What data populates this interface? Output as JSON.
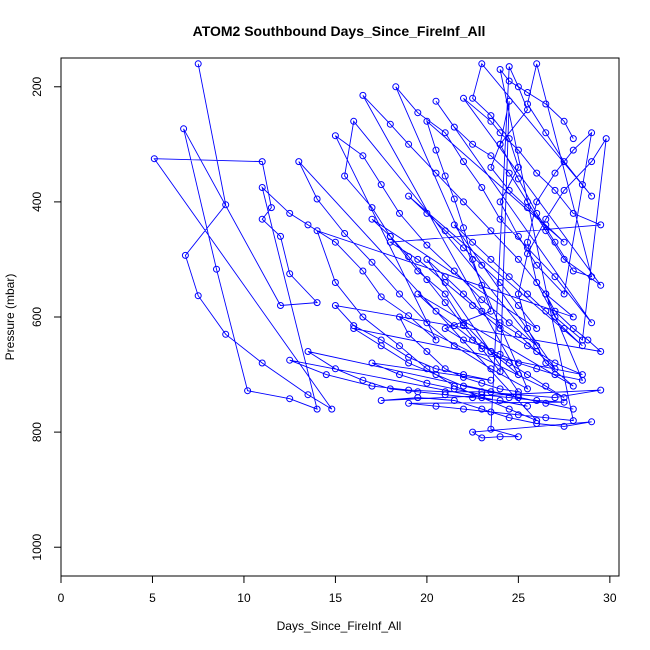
{
  "chart_data": {
    "type": "scatter",
    "title": "ATOM2 Southbound Days_Since_FireInf_All",
    "xlabel": "Days_Since_FireInf_All",
    "ylabel": "Pressure (mbar)",
    "xlim": [
      0,
      30.5
    ],
    "ylim": [
      1050,
      150
    ],
    "y_reversed": true,
    "xticks": [
      "0",
      "5",
      "10",
      "15",
      "20",
      "25",
      "30"
    ],
    "yticks": [
      "200",
      "400",
      "600",
      "800",
      "1000"
    ],
    "grid": false,
    "legend": "none",
    "series": [
      {
        "marker": "open-circle",
        "connected": true,
        "points": [
          [
            7.5,
            160
          ],
          [
            9.0,
            405
          ],
          [
            6.8,
            493
          ],
          [
            7.5,
            563
          ],
          [
            9.0,
            630
          ],
          [
            11.0,
            680
          ],
          [
            13.5,
            735
          ],
          [
            14.8,
            760
          ],
          [
            5.1,
            325
          ],
          [
            11.0,
            330
          ],
          [
            11.5,
            410
          ],
          [
            11.0,
            430
          ],
          [
            12.0,
            460
          ],
          [
            12.5,
            525
          ],
          [
            14.0,
            575
          ],
          [
            12.0,
            580
          ],
          [
            6.7,
            273
          ],
          [
            8.5,
            517
          ],
          [
            10.2,
            728
          ],
          [
            12.5,
            742
          ],
          [
            14.0,
            760
          ],
          [
            11.0,
            375
          ],
          [
            12.5,
            420
          ],
          [
            13.5,
            440
          ],
          [
            15.0,
            470
          ],
          [
            16.5,
            520
          ],
          [
            17.5,
            565
          ],
          [
            19.0,
            598
          ],
          [
            20.5,
            640
          ],
          [
            15.0,
            285
          ],
          [
            16.5,
            320
          ],
          [
            17.5,
            370
          ],
          [
            18.5,
            420
          ],
          [
            20.0,
            475
          ],
          [
            21.5,
            520
          ],
          [
            23.0,
            570
          ],
          [
            24.5,
            610
          ],
          [
            26.0,
            650
          ],
          [
            16.0,
            260
          ],
          [
            15.5,
            355
          ],
          [
            17.0,
            410
          ],
          [
            18.0,
            460
          ],
          [
            19.5,
            520
          ],
          [
            21.0,
            560
          ],
          [
            22.0,
            610
          ],
          [
            23.5,
            660
          ],
          [
            25.0,
            700
          ],
          [
            16.5,
            215
          ],
          [
            18.0,
            265
          ],
          [
            19.0,
            300
          ],
          [
            20.5,
            350
          ],
          [
            22.0,
            400
          ],
          [
            23.5,
            450
          ],
          [
            25.0,
            500
          ],
          [
            26.5,
            560
          ],
          [
            28.0,
            600
          ],
          [
            14.0,
            450
          ],
          [
            15.0,
            540
          ],
          [
            16.5,
            600
          ],
          [
            18.5,
            650
          ],
          [
            20.0,
            690
          ],
          [
            21.5,
            720
          ],
          [
            23.0,
            740
          ],
          [
            24.5,
            760
          ],
          [
            26.0,
            780
          ],
          [
            13.0,
            330
          ],
          [
            14.0,
            395
          ],
          [
            15.5,
            455
          ],
          [
            17.0,
            505
          ],
          [
            18.5,
            560
          ],
          [
            20.0,
            610
          ],
          [
            21.5,
            650
          ],
          [
            23.5,
            690
          ],
          [
            25.5,
            725
          ],
          [
            18.3,
            200
          ],
          [
            19.5,
            245
          ],
          [
            21.0,
            280
          ],
          [
            22.0,
            330
          ],
          [
            23.0,
            375
          ],
          [
            24.0,
            430
          ],
          [
            25.5,
            480
          ],
          [
            27.0,
            530
          ],
          [
            29.0,
            610
          ],
          [
            20.5,
            225
          ],
          [
            21.5,
            270
          ],
          [
            22.5,
            300
          ],
          [
            23.5,
            320
          ],
          [
            24.5,
            350
          ],
          [
            25.5,
            400
          ],
          [
            26.5,
            450
          ],
          [
            27.5,
            500
          ],
          [
            29.5,
            545
          ],
          [
            22.0,
            220
          ],
          [
            23.5,
            260
          ],
          [
            24.0,
            280
          ],
          [
            25.0,
            310
          ],
          [
            26.0,
            350
          ],
          [
            27.0,
            380
          ],
          [
            28.0,
            420
          ],
          [
            29.5,
            440
          ],
          [
            18.0,
            470
          ],
          [
            19.5,
            500
          ],
          [
            21.0,
            540
          ],
          [
            22.5,
            580
          ],
          [
            24.0,
            620
          ],
          [
            25.5,
            650
          ],
          [
            27.0,
            680
          ],
          [
            28.5,
            700
          ],
          [
            16.0,
            620
          ],
          [
            17.5,
            650
          ],
          [
            19.0,
            680
          ],
          [
            20.5,
            700
          ],
          [
            22.0,
            720
          ],
          [
            23.5,
            730
          ],
          [
            25.0,
            740
          ],
          [
            26.5,
            750
          ],
          [
            28.0,
            760
          ],
          [
            13.5,
            660
          ],
          [
            15.0,
            690
          ],
          [
            16.5,
            710
          ],
          [
            18.0,
            725
          ],
          [
            19.5,
            730
          ],
          [
            21.0,
            735
          ],
          [
            22.5,
            740
          ],
          [
            24.0,
            745
          ],
          [
            25.5,
            755
          ],
          [
            12.5,
            675
          ],
          [
            14.5,
            700
          ],
          [
            17.0,
            720
          ],
          [
            19.0,
            727
          ],
          [
            21.0,
            730
          ],
          [
            23.0,
            730
          ],
          [
            25.0,
            735
          ],
          [
            27.0,
            740
          ],
          [
            29.5,
            727
          ],
          [
            17.5,
            745
          ],
          [
            19.5,
            740
          ],
          [
            21.5,
            745
          ],
          [
            23.0,
            760
          ],
          [
            24.5,
            775
          ],
          [
            26.0,
            785
          ],
          [
            27.5,
            790
          ],
          [
            29.0,
            782
          ],
          [
            22.5,
            800
          ],
          [
            23.0,
            810
          ],
          [
            24.0,
            808
          ],
          [
            25.0,
            808
          ],
          [
            23.5,
            795
          ],
          [
            24.5,
            165
          ],
          [
            25.0,
            200
          ],
          [
            25.5,
            240
          ],
          [
            24.0,
            300
          ],
          [
            25.0,
            360
          ],
          [
            26.0,
            420
          ],
          [
            27.0,
            470
          ],
          [
            28.0,
            520
          ],
          [
            29.0,
            530
          ],
          [
            26.0,
            160
          ],
          [
            25.5,
            230
          ],
          [
            26.5,
            280
          ],
          [
            27.5,
            330
          ],
          [
            28.5,
            370
          ],
          [
            29.0,
            390
          ],
          [
            23.0,
            160
          ],
          [
            22.5,
            220
          ],
          [
            23.5,
            250
          ],
          [
            24.5,
            290
          ],
          [
            25.0,
            340
          ],
          [
            24.0,
            400
          ],
          [
            25.0,
            460
          ],
          [
            26.0,
            510
          ],
          [
            27.5,
            560
          ],
          [
            29.0,
            280
          ],
          [
            28.0,
            310
          ],
          [
            27.0,
            350
          ],
          [
            26.0,
            400
          ],
          [
            25.5,
            470
          ],
          [
            26.0,
            540
          ],
          [
            27.0,
            600
          ],
          [
            28.5,
            640
          ],
          [
            29.8,
            290
          ],
          [
            29.0,
            330
          ],
          [
            27.5,
            380
          ],
          [
            26.5,
            430
          ],
          [
            25.5,
            490
          ],
          [
            25.0,
            560
          ],
          [
            25.5,
            620
          ],
          [
            26.5,
            680
          ],
          [
            28.0,
            720
          ],
          [
            19.5,
            560
          ],
          [
            20.5,
            590
          ],
          [
            21.5,
            615
          ],
          [
            22.5,
            640
          ],
          [
            23.5,
            660
          ],
          [
            24.5,
            680
          ],
          [
            25.5,
            700
          ],
          [
            26.5,
            720
          ],
          [
            27.5,
            740
          ],
          [
            18.5,
            600
          ],
          [
            19.0,
            630
          ],
          [
            20.0,
            660
          ],
          [
            21.0,
            690
          ],
          [
            22.0,
            705
          ],
          [
            23.0,
            715
          ],
          [
            24.0,
            725
          ],
          [
            25.0,
            730
          ],
          [
            20.0,
            500
          ],
          [
            21.0,
            530
          ],
          [
            22.0,
            560
          ],
          [
            23.0,
            590
          ],
          [
            24.0,
            610
          ],
          [
            25.0,
            630
          ],
          [
            26.0,
            660
          ],
          [
            27.0,
            690
          ],
          [
            21.5,
            440
          ],
          [
            22.5,
            470
          ],
          [
            23.5,
            500
          ],
          [
            24.5,
            530
          ],
          [
            25.5,
            560
          ],
          [
            26.5,
            590
          ],
          [
            27.5,
            620
          ],
          [
            28.5,
            650
          ],
          [
            19.0,
            390
          ],
          [
            20.0,
            420
          ],
          [
            21.0,
            450
          ],
          [
            22.0,
            480
          ],
          [
            23.0,
            510
          ],
          [
            24.0,
            540
          ],
          [
            25.0,
            580
          ],
          [
            26.0,
            620
          ],
          [
            17.0,
            430
          ],
          [
            18.0,
            460
          ],
          [
            19.0,
            495
          ],
          [
            20.0,
            535
          ],
          [
            21.0,
            575
          ],
          [
            22.0,
            615
          ],
          [
            23.0,
            655
          ],
          [
            24.0,
            695
          ],
          [
            24.5,
            225
          ],
          [
            24.0,
            300
          ],
          [
            23.5,
            340
          ],
          [
            24.5,
            380
          ],
          [
            25.5,
            410
          ],
          [
            26.5,
            440
          ],
          [
            27.5,
            470
          ],
          [
            20.0,
            260
          ],
          [
            20.5,
            310
          ],
          [
            21.0,
            355
          ],
          [
            21.5,
            395
          ],
          [
            22.0,
            445
          ],
          [
            22.5,
            500
          ],
          [
            23.0,
            545
          ],
          [
            23.5,
            590
          ],
          [
            21.0,
            620
          ],
          [
            22.0,
            640
          ],
          [
            23.0,
            650
          ],
          [
            24.0,
            665
          ],
          [
            25.0,
            680
          ],
          [
            26.0,
            690
          ],
          [
            27.0,
            700
          ],
          [
            28.5,
            710
          ],
          [
            26.5,
            560
          ],
          [
            27.0,
            590
          ],
          [
            28.0,
            620
          ],
          [
            28.8,
            640
          ],
          [
            29.5,
            660
          ],
          [
            15.0,
            580
          ],
          [
            16.0,
            615
          ],
          [
            17.5,
            640
          ],
          [
            19.0,
            670
          ],
          [
            20.5,
            690
          ],
          [
            22.0,
            700
          ],
          [
            23.5,
            710
          ],
          [
            17.0,
            680
          ],
          [
            18.5,
            700
          ],
          [
            20.0,
            715
          ],
          [
            21.5,
            725
          ],
          [
            23.0,
            735
          ],
          [
            24.5,
            740
          ],
          [
            26.0,
            745
          ],
          [
            27.5,
            748
          ],
          [
            19.0,
            750
          ],
          [
            20.5,
            755
          ],
          [
            22.0,
            760
          ],
          [
            23.5,
            765
          ],
          [
            25.0,
            770
          ],
          [
            26.5,
            775
          ],
          [
            28.0,
            780
          ],
          [
            24.0,
            170
          ],
          [
            24.5,
            190
          ],
          [
            25.5,
            210
          ],
          [
            26.5,
            230
          ],
          [
            27.5,
            260
          ],
          [
            28.0,
            290
          ]
        ]
      }
    ]
  },
  "colors": {
    "series": "#0000ff",
    "axis": "#000000",
    "background": "#ffffff"
  }
}
